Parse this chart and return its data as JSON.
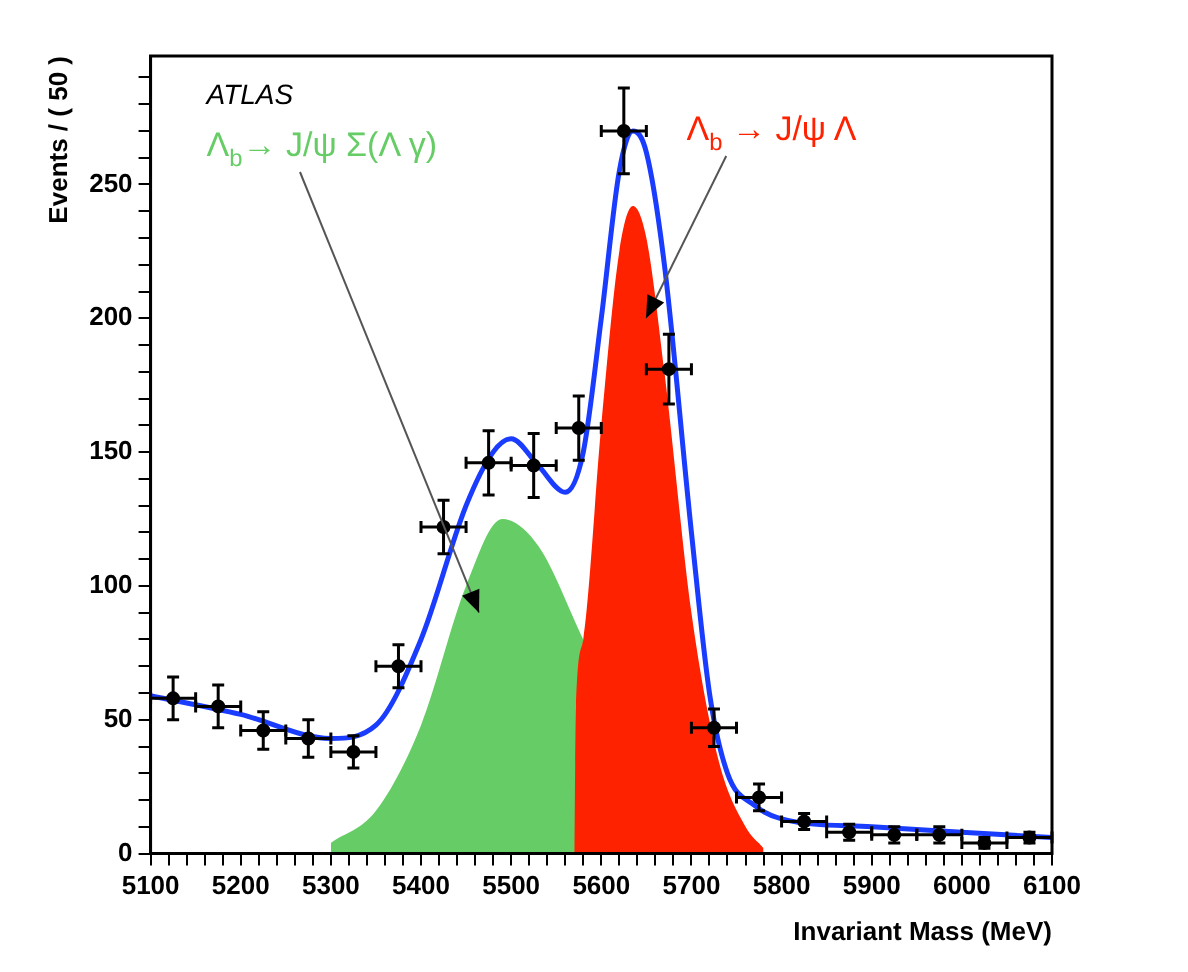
{
  "chart_data": {
    "type": "scatter",
    "xlabel": "Invariant Mass (MeV)",
    "ylabel": "Events / ( 50 )",
    "xlim": [
      5100,
      6100
    ],
    "ylim": [
      0,
      298
    ],
    "xticks": [
      5100,
      {
        "value": 5120,
        "label": null
      },
      {
        "value": 5140,
        "label": null
      },
      {
        "value": 5160,
        "label": null
      },
      {
        "value": 5180,
        "label": null
      },
      5200,
      {
        "value": 5220,
        "label": null
      },
      {
        "value": 5240,
        "label": null
      },
      {
        "value": 5260,
        "label": null
      },
      {
        "value": 5280,
        "label": null
      },
      5300,
      {
        "value": 5320,
        "label": null
      },
      {
        "value": 5340,
        "label": null
      },
      {
        "value": 5360,
        "label": null
      },
      {
        "value": 5380,
        "label": null
      },
      5400,
      {
        "value": 5420,
        "label": null
      },
      {
        "value": 5440,
        "label": null
      },
      {
        "value": 5460,
        "label": null
      },
      {
        "value": 5480,
        "label": null
      },
      5500,
      {
        "value": 5520,
        "label": null
      },
      {
        "value": 5540,
        "label": null
      },
      {
        "value": 5560,
        "label": null
      },
      {
        "value": 5580,
        "label": null
      },
      5600,
      {
        "value": 5620,
        "label": null
      },
      {
        "value": 5640,
        "label": null
      },
      {
        "value": 5660,
        "label": null
      },
      {
        "value": 5680,
        "label": null
      },
      5700,
      {
        "value": 5720,
        "label": null
      },
      {
        "value": 5740,
        "label": null
      },
      {
        "value": 5760,
        "label": null
      },
      {
        "value": 5780,
        "label": null
      },
      5800,
      {
        "value": 5820,
        "label": null
      },
      {
        "value": 5840,
        "label": null
      },
      {
        "value": 5860,
        "label": null
      },
      {
        "value": 5880,
        "label": null
      },
      5900,
      {
        "value": 5920,
        "label": null
      },
      {
        "value": 5940,
        "label": null
      },
      {
        "value": 5960,
        "label": null
      },
      {
        "value": 5980,
        "label": null
      },
      6000,
      {
        "value": 6020,
        "label": null
      },
      {
        "value": 6040,
        "label": null
      },
      {
        "value": 6060,
        "label": null
      },
      {
        "value": 6080,
        "label": null
      },
      6100
    ],
    "yticks": [
      0,
      {
        "value": 10,
        "label": null
      },
      {
        "value": 20,
        "label": null
      },
      {
        "value": 30,
        "label": null
      },
      {
        "value": 40,
        "label": null
      },
      50,
      {
        "value": 60,
        "label": null
      },
      {
        "value": 70,
        "label": null
      },
      {
        "value": 80,
        "label": null
      },
      {
        "value": 90,
        "label": null
      },
      100,
      {
        "value": 110,
        "label": null
      },
      {
        "value": 120,
        "label": null
      },
      {
        "value": 130,
        "label": null
      },
      {
        "value": 140,
        "label": null
      },
      150,
      {
        "value": 160,
        "label": null
      },
      {
        "value": 170,
        "label": null
      },
      {
        "value": 180,
        "label": null
      },
      {
        "value": 190,
        "label": null
      },
      200,
      {
        "value": 210,
        "label": null
      },
      {
        "value": 220,
        "label": null
      },
      {
        "value": 230,
        "label": null
      },
      {
        "value": 240,
        "label": null
      },
      250,
      {
        "value": 260,
        "label": null
      },
      {
        "value": 270,
        "label": null
      },
      {
        "value": 280,
        "label": null
      },
      {
        "value": 290,
        "label": null
      }
    ],
    "grid": false,
    "legend": false,
    "series": [
      {
        "type": "area",
        "color": "#66cc66",
        "x": [
          5300,
          5350,
          5400,
          5450,
          5490,
          5530,
          5580
        ],
        "values": [
          4,
          16,
          48,
          100,
          125,
          115,
          80
        ]
      },
      {
        "type": "area",
        "color": "#ff2200",
        "x": [
          5570,
          5572,
          5580,
          5600,
          5620,
          5635,
          5650,
          5670,
          5700,
          5730,
          5760,
          5780
        ],
        "values": [
          0,
          55,
          80,
          160,
          225,
          242,
          230,
          180,
          90,
          35,
          10,
          2
        ]
      },
      {
        "type": "line",
        "color": "#1a3cff",
        "marker": "none",
        "x": [
          5100,
          5200,
          5300,
          5350,
          5400,
          5450,
          5480,
          5500,
          5530,
          5560,
          5580,
          5600,
          5620,
          5635,
          5650,
          5670,
          5700,
          5720,
          5740,
          5770,
          5800,
          5900,
          6000,
          6100
        ],
        "values": [
          59,
          52,
          43,
          48,
          80,
          130,
          150,
          155,
          145,
          135,
          150,
          200,
          255,
          270,
          262,
          220,
          120,
          60,
          30,
          18,
          13,
          10,
          8,
          6
        ]
      },
      {
        "type": "scatter",
        "color": "#000000",
        "marker": "circle",
        "x": [
          5125,
          5175,
          5225,
          5275,
          5325,
          5375,
          5425,
          5475,
          5525,
          5575,
          5625,
          5675,
          5725,
          5775,
          5825,
          5875,
          5925,
          5975,
          6025,
          6075
        ],
        "values": [
          58,
          55,
          46,
          43,
          38,
          70,
          122,
          146,
          145,
          159,
          270,
          181,
          47,
          21,
          12,
          8,
          7,
          7,
          4,
          6
        ],
        "errors": [
          8,
          8,
          7,
          7,
          6,
          8,
          10,
          12,
          12,
          12,
          16,
          13,
          7,
          5,
          3,
          3,
          3,
          3,
          2,
          2
        ],
        "xerrors": [
          25,
          25,
          25,
          25,
          25,
          25,
          25,
          25,
          25,
          25,
          25,
          25,
          25,
          25,
          25,
          25,
          25,
          25,
          25,
          25
        ]
      }
    ],
    "annotations": [
      "ATLAS",
      "Λ$_{b}$→ J/ψ Σ(Λ γ)",
      "Λ$_{b}$ → J/ψ Λ"
    ]
  }
}
